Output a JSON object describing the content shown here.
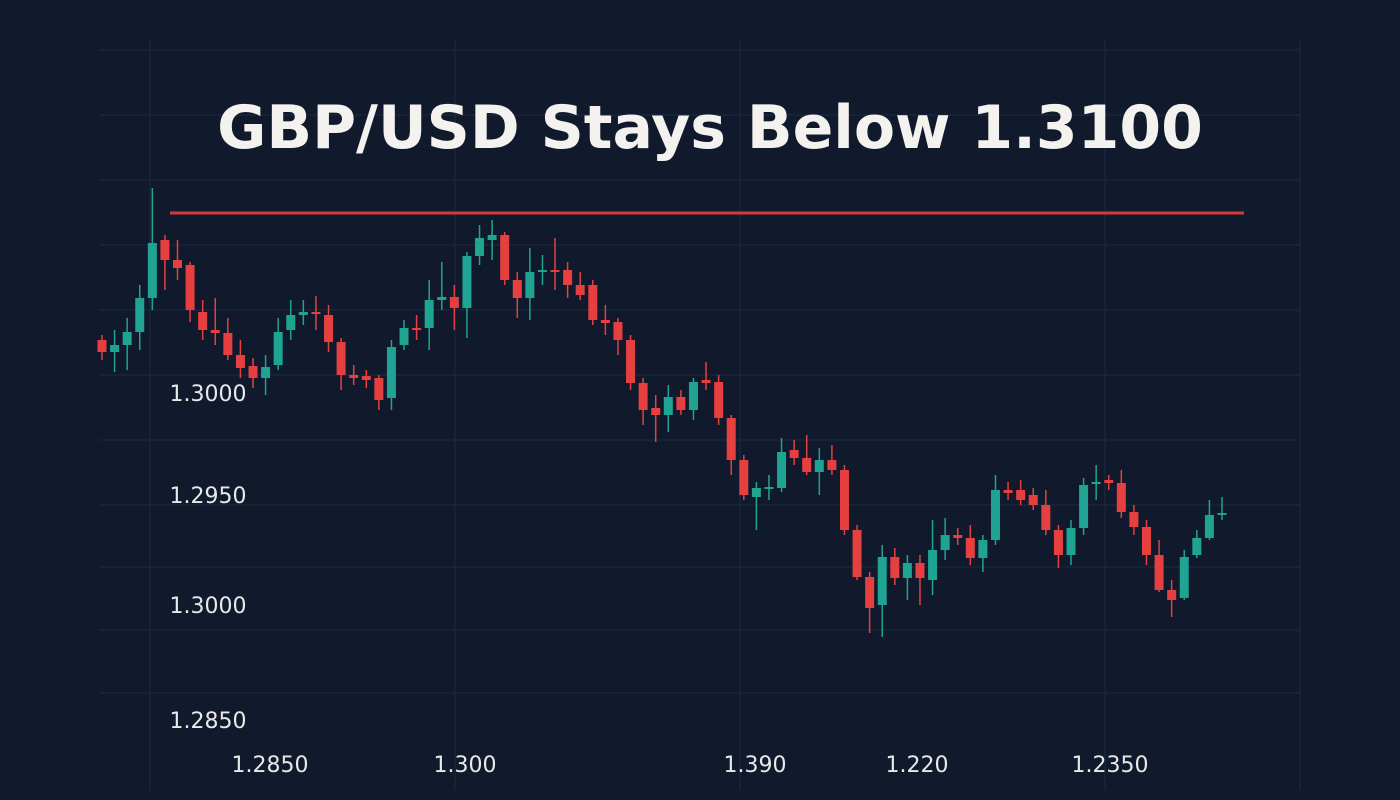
{
  "chart_data": {
    "type": "candlestick",
    "title": "GBP/USD Stays Below 1.3100",
    "ylim": [
      1.28175,
      1.31275
    ],
    "grid": true,
    "up_color": "#1fa393",
    "down_color": "#e5403f",
    "level": 1.3091,
    "level_color": "#d6393b",
    "y_labels": [
      "1.3000",
      "1.2950",
      "1.3000",
      "1.2850"
    ],
    "x_labels": [
      "1.2850",
      "1.300",
      "1.390",
      "1.220",
      "1.2350"
    ],
    "open": [
      1.30275,
      1.30215,
      1.3025,
      1.30315,
      1.30485,
      1.30775,
      1.30675,
      1.3065,
      1.30415,
      1.30325,
      1.3031,
      1.302,
      1.30145,
      1.30085,
      1.3015,
      1.30325,
      1.304,
      1.30415,
      1.304,
      1.30265,
      1.301,
      1.30095,
      1.30085,
      1.29985,
      1.3025,
      1.30335,
      1.30335,
      1.30475,
      1.3049,
      1.30435,
      1.30695,
      1.30775,
      1.308,
      1.30575,
      1.30485,
      1.30615,
      1.30625,
      1.30625,
      1.3055,
      1.3055,
      1.30375,
      1.30365,
      1.30275,
      1.3006,
      1.29935,
      1.299,
      1.2999,
      1.29925,
      1.30075,
      1.30065,
      1.29885,
      1.29675,
      1.2949,
      1.29535,
      1.29535,
      1.29725,
      1.29685,
      1.29615,
      1.29675,
      1.29625,
      1.29325,
      1.2909,
      1.2895,
      1.2919,
      1.29085,
      1.2916,
      1.29075,
      1.29225,
      1.293,
      1.29285,
      1.29185,
      1.29275,
      1.29525,
      1.29525,
      1.295,
      1.2945,
      1.29325,
      1.292,
      1.29335,
      1.29555,
      1.29575,
      1.2956,
      1.29415,
      1.2934,
      1.292,
      1.29025,
      1.28985,
      1.292,
      1.29285,
      1.294
    ],
    "high": [
      1.303,
      1.30325,
      1.30385,
      1.3055,
      1.31035,
      1.308,
      1.30775,
      1.30665,
      1.30475,
      1.30485,
      1.30385,
      1.30275,
      1.30185,
      1.302,
      1.30385,
      1.30475,
      1.30475,
      1.30495,
      1.3045,
      1.30285,
      1.3015,
      1.30125,
      1.301,
      1.30275,
      1.30375,
      1.304,
      1.30575,
      1.30665,
      1.3055,
      1.30715,
      1.3085,
      1.30875,
      1.30815,
      1.30615,
      1.30735,
      1.307,
      1.30785,
      1.30665,
      1.30615,
      1.30575,
      1.3045,
      1.30385,
      1.303,
      1.30085,
      1.3,
      1.3005,
      1.30025,
      1.30085,
      1.30165,
      1.301,
      1.299,
      1.297,
      1.29565,
      1.296,
      1.29785,
      1.29775,
      1.298,
      1.29735,
      1.2975,
      1.2965,
      1.2935,
      1.29115,
      1.2925,
      1.29235,
      1.292,
      1.292,
      1.29375,
      1.29385,
      1.29335,
      1.2935,
      1.293,
      1.296,
      1.29565,
      1.29575,
      1.29535,
      1.29525,
      1.2935,
      1.29375,
      1.29585,
      1.2965,
      1.296,
      1.29625,
      1.2945,
      1.29375,
      1.29275,
      1.29075,
      1.29225,
      1.29325,
      1.29475,
      1.2949
    ],
    "low": [
      1.30175,
      1.30115,
      1.30125,
      1.30225,
      1.30425,
      1.30525,
      1.30575,
      1.30365,
      1.30275,
      1.3025,
      1.30175,
      1.30085,
      1.30035,
      1.3,
      1.30125,
      1.30275,
      1.3035,
      1.30325,
      1.30215,
      1.30025,
      1.3005,
      1.30035,
      1.29925,
      1.29925,
      1.30225,
      1.30275,
      1.30225,
      1.30425,
      1.30325,
      1.30285,
      1.3065,
      1.30675,
      1.3055,
      1.30385,
      1.30375,
      1.3055,
      1.30525,
      1.30485,
      1.30475,
      1.3035,
      1.303,
      1.302,
      1.30025,
      1.2985,
      1.29765,
      1.29815,
      1.299,
      1.29875,
      1.30025,
      1.2985,
      1.296,
      1.29475,
      1.29325,
      1.29475,
      1.29515,
      1.2965,
      1.296,
      1.295,
      1.296,
      1.293,
      1.29075,
      1.2881,
      1.2879,
      1.2905,
      1.28975,
      1.2895,
      1.29,
      1.29175,
      1.2925,
      1.2915,
      1.29115,
      1.2925,
      1.29475,
      1.2945,
      1.29425,
      1.293,
      1.29135,
      1.2915,
      1.293,
      1.29475,
      1.29525,
      1.29385,
      1.293,
      1.2915,
      1.29015,
      1.2889,
      1.28975,
      1.29185,
      1.29275,
      1.29375
    ],
    "close": [
      1.30215,
      1.3025,
      1.30315,
      1.30485,
      1.3076,
      1.30675,
      1.30635,
      1.30425,
      1.30325,
      1.3031,
      1.302,
      1.30135,
      1.30085,
      1.3014,
      1.30315,
      1.304,
      1.30415,
      1.30405,
      1.30265,
      1.301,
      1.30085,
      1.30075,
      1.29975,
      1.3024,
      1.30335,
      1.30325,
      1.30475,
      1.3049,
      1.30435,
      1.30695,
      1.30785,
      1.308,
      1.30575,
      1.30485,
      1.30615,
      1.30625,
      1.30615,
      1.3055,
      1.305,
      1.30375,
      1.3036,
      1.30275,
      1.3006,
      1.29925,
      1.299,
      1.2999,
      1.29925,
      1.30065,
      1.3006,
      1.29885,
      1.29675,
      1.295,
      1.29535,
      1.2954,
      1.29715,
      1.29685,
      1.29615,
      1.29675,
      1.29625,
      1.29325,
      1.2909,
      1.28935,
      1.2919,
      1.29085,
      1.2916,
      1.29085,
      1.29225,
      1.293,
      1.29285,
      1.29185,
      1.29275,
      1.29525,
      1.2951,
      1.29475,
      1.2945,
      1.29325,
      1.292,
      1.29335,
      1.2955,
      1.29565,
      1.2956,
      1.29415,
      1.2934,
      1.292,
      1.29025,
      1.28975,
      1.2919,
      1.29285,
      1.294,
      1.2941
    ]
  }
}
